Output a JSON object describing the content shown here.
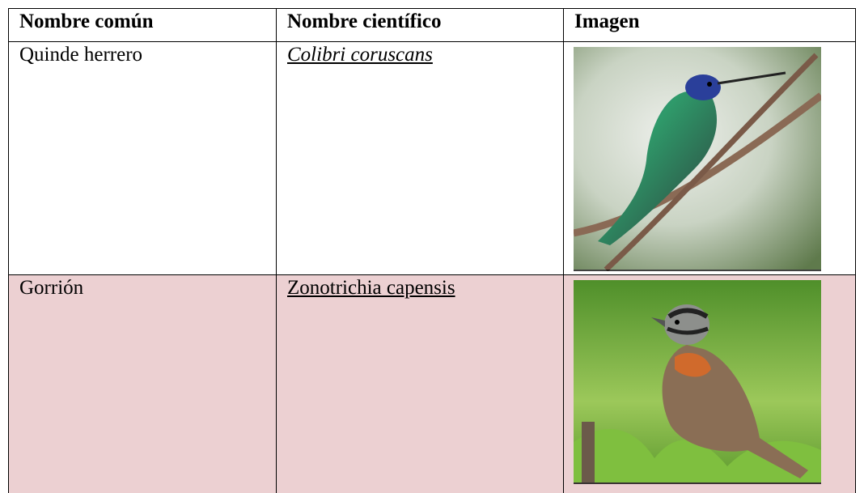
{
  "table": {
    "header": [
      "Nombre común",
      "Nombre científico",
      "Imagen"
    ],
    "rows": [
      [
        "Quinde herrero",
        "Colibri coruscans"
      ],
      [
        "Gorrión",
        "Zonotrichia capensis"
      ]
    ]
  }
}
